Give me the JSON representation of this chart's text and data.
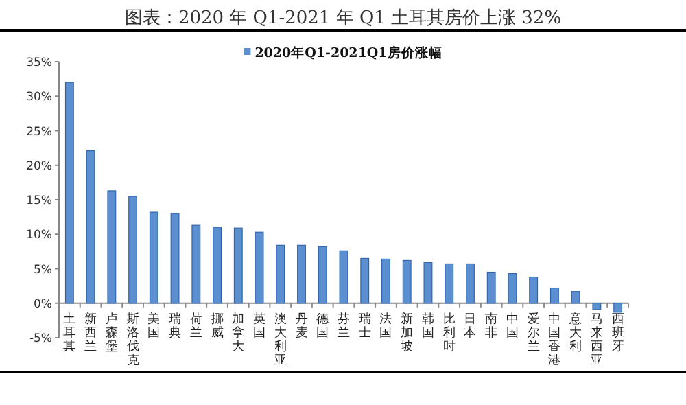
{
  "chart_data": {
    "type": "bar",
    "title": "图表：2020 年 Q1-2021 年 Q1 土耳其房价上涨 32%",
    "categories": [
      "土耳其",
      "新西兰",
      "卢森堡",
      "斯洛伐克",
      "美国",
      "瑞典",
      "荷兰",
      "挪威",
      "加拿大",
      "英国",
      "澳大利亚",
      "丹麦",
      "德国",
      "芬兰",
      "瑞士",
      "法国",
      "新加坡",
      "韩国",
      "比利时",
      "日本",
      "南非",
      "中国",
      "爱尔兰",
      "中国香港",
      "意大利",
      "马来西亚",
      "西班牙"
    ],
    "series": [
      {
        "name": "2020年Q1-2021Q1房价涨幅",
        "color": "#5b8fd0",
        "values": [
          32.0,
          22.1,
          16.3,
          15.5,
          13.2,
          13.0,
          11.3,
          11.0,
          10.9,
          10.3,
          8.4,
          8.4,
          8.2,
          7.6,
          6.5,
          6.4,
          6.2,
          5.9,
          5.7,
          5.7,
          4.5,
          4.3,
          3.8,
          2.2,
          1.7,
          -0.9,
          -1.3
        ]
      }
    ],
    "ylim": [
      -5,
      35
    ],
    "yticks": [
      {
        "value": -5,
        "label": "-5%"
      },
      {
        "value": 0,
        "label": "0%"
      },
      {
        "value": 5,
        "label": "5%"
      },
      {
        "value": 10,
        "label": "10%"
      },
      {
        "value": 15,
        "label": "15%"
      },
      {
        "value": 20,
        "label": "20%"
      },
      {
        "value": 25,
        "label": "25%"
      },
      {
        "value": 30,
        "label": "30%"
      },
      {
        "value": 35,
        "label": "35%"
      }
    ],
    "grid": false,
    "legend": "top"
  }
}
